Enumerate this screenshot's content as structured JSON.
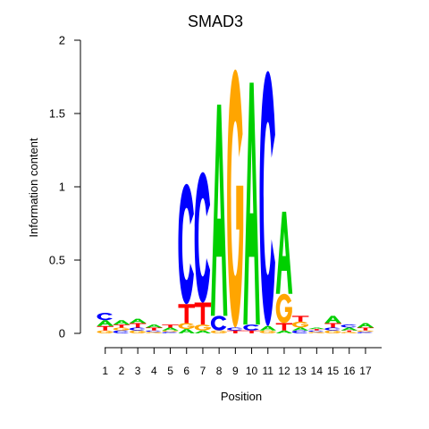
{
  "chart_data": {
    "type": "sequence-logo",
    "title": "SMAD3",
    "xlabel": "Position",
    "ylabel": "Information content",
    "ylim": [
      0,
      2
    ],
    "yticks": [
      "0",
      "0.5",
      "1",
      "1.5",
      "2"
    ],
    "colors": {
      "A": "#00d000",
      "C": "#0000ff",
      "G": "#ffa500",
      "T": "#ff0000"
    },
    "positions": [
      {
        "label": "1",
        "letters": [
          [
            "G",
            0.02
          ],
          [
            "T",
            0.03
          ],
          [
            "A",
            0.04
          ],
          [
            "C",
            0.05
          ]
        ]
      },
      {
        "label": "2",
        "letters": [
          [
            "C",
            0.02
          ],
          [
            "G",
            0.02
          ],
          [
            "T",
            0.02
          ],
          [
            "A",
            0.03
          ]
        ]
      },
      {
        "label": "3",
        "letters": [
          [
            "G",
            0.02
          ],
          [
            "C",
            0.02
          ],
          [
            "T",
            0.03
          ],
          [
            "A",
            0.03
          ]
        ]
      },
      {
        "label": "4",
        "letters": [
          [
            "G",
            0.01
          ],
          [
            "C",
            0.01
          ],
          [
            "T",
            0.02
          ],
          [
            "A",
            0.02
          ]
        ]
      },
      {
        "label": "5",
        "letters": [
          [
            "C",
            0.01
          ],
          [
            "G",
            0.01
          ],
          [
            "A",
            0.02
          ],
          [
            "T",
            0.02
          ]
        ]
      },
      {
        "label": "6",
        "letters": [
          [
            "A",
            0.03
          ],
          [
            "G",
            0.04
          ],
          [
            "T",
            0.13
          ],
          [
            "C",
            0.82
          ]
        ]
      },
      {
        "label": "7",
        "letters": [
          [
            "A",
            0.02
          ],
          [
            "G",
            0.04
          ],
          [
            "T",
            0.15
          ],
          [
            "C",
            0.89
          ]
        ]
      },
      {
        "label": "8",
        "letters": [
          [
            "G",
            0.02
          ],
          [
            "C",
            0.1
          ],
          [
            "A",
            1.44
          ]
        ]
      },
      {
        "label": "9",
        "letters": [
          [
            "T",
            0.02
          ],
          [
            "C",
            0.02
          ],
          [
            "G",
            1.76
          ]
        ]
      },
      {
        "label": "10",
        "letters": [
          [
            "T",
            0.02
          ],
          [
            "C",
            0.04
          ],
          [
            "A",
            1.65
          ]
        ]
      },
      {
        "label": "11",
        "letters": [
          [
            "G",
            0.02
          ],
          [
            "A",
            0.03
          ],
          [
            "C",
            1.74
          ]
        ]
      },
      {
        "label": "12",
        "letters": [
          [
            "A",
            0.02
          ],
          [
            "T",
            0.05
          ],
          [
            "G",
            0.2
          ],
          [
            "A",
            0.56
          ]
        ]
      },
      {
        "label": "13",
        "letters": [
          [
            "C",
            0.02
          ],
          [
            "A",
            0.02
          ],
          [
            "G",
            0.04
          ],
          [
            "T",
            0.04
          ]
        ]
      },
      {
        "label": "14",
        "letters": [
          [
            "G",
            0.01
          ],
          [
            "C",
            0.01
          ],
          [
            "T",
            0.01
          ],
          [
            "A",
            0.01
          ]
        ]
      },
      {
        "label": "15",
        "letters": [
          [
            "G",
            0.02
          ],
          [
            "C",
            0.02
          ],
          [
            "T",
            0.03
          ],
          [
            "A",
            0.05
          ]
        ]
      },
      {
        "label": "16",
        "letters": [
          [
            "G",
            0.01
          ],
          [
            "T",
            0.01
          ],
          [
            "A",
            0.02
          ],
          [
            "C",
            0.02
          ]
        ]
      },
      {
        "label": "17",
        "letters": [
          [
            "C",
            0.01
          ],
          [
            "G",
            0.01
          ],
          [
            "T",
            0.02
          ],
          [
            "A",
            0.03
          ]
        ]
      }
    ]
  }
}
